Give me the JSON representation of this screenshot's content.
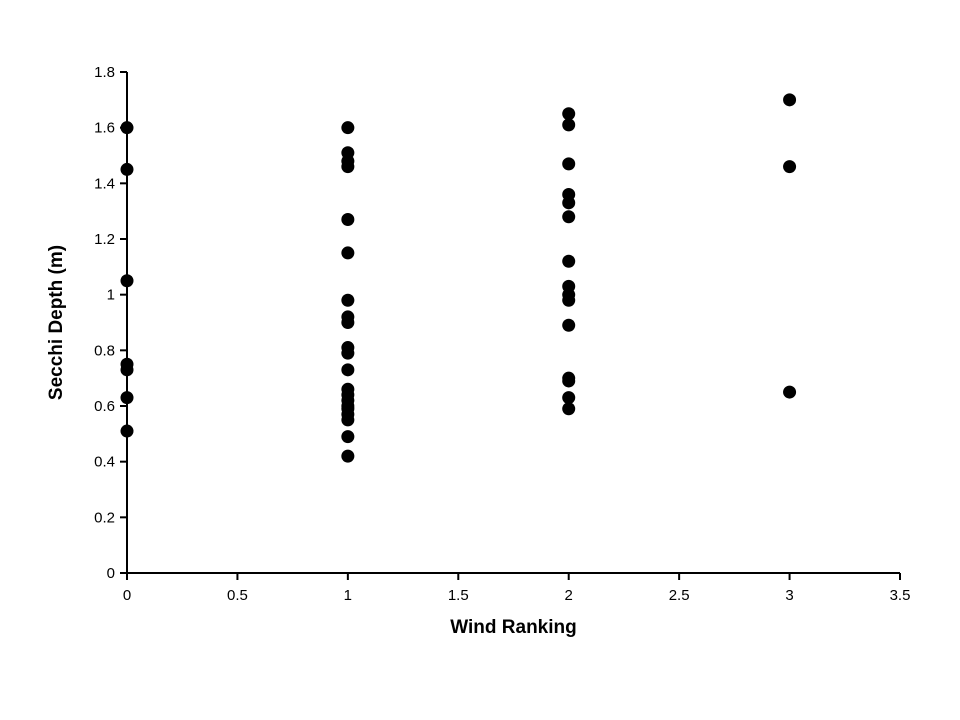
{
  "chart_data": {
    "type": "scatter",
    "title": "",
    "xlabel": "Wind Ranking",
    "ylabel": "Secchi Depth (m)",
    "xlim": [
      0,
      3.5
    ],
    "ylim": [
      0,
      1.8
    ],
    "grid": false,
    "legend": "none",
    "marker_color": "#000000",
    "x_tick_labels": [
      "0",
      "0.5",
      "1",
      "1.5",
      "2",
      "2.5",
      "3",
      "3.5"
    ],
    "x_tick_values": [
      0,
      0.5,
      1,
      1.5,
      2,
      2.5,
      3,
      3.5
    ],
    "y_tick_labels": [
      "0",
      "0.2",
      "0.4",
      "0.6",
      "0.8",
      "1",
      "1.2",
      "1.4",
      "1.6",
      "1.8"
    ],
    "y_tick_values": [
      0,
      0.2,
      0.4,
      0.6,
      0.8,
      1,
      1.2,
      1.4,
      1.6,
      1.8
    ],
    "points": [
      {
        "x": 0,
        "y": 1.6
      },
      {
        "x": 0,
        "y": 1.45
      },
      {
        "x": 0,
        "y": 1.05
      },
      {
        "x": 0,
        "y": 0.75
      },
      {
        "x": 0,
        "y": 0.73
      },
      {
        "x": 0,
        "y": 0.63
      },
      {
        "x": 0,
        "y": 0.51
      },
      {
        "x": 1,
        "y": 1.6
      },
      {
        "x": 1,
        "y": 1.51
      },
      {
        "x": 1,
        "y": 1.48
      },
      {
        "x": 1,
        "y": 1.46
      },
      {
        "x": 1,
        "y": 1.27
      },
      {
        "x": 1,
        "y": 1.15
      },
      {
        "x": 1,
        "y": 0.98
      },
      {
        "x": 1,
        "y": 0.92
      },
      {
        "x": 1,
        "y": 0.9
      },
      {
        "x": 1,
        "y": 0.81
      },
      {
        "x": 1,
        "y": 0.79
      },
      {
        "x": 1,
        "y": 0.73
      },
      {
        "x": 1,
        "y": 0.66
      },
      {
        "x": 1,
        "y": 0.64
      },
      {
        "x": 1,
        "y": 0.62
      },
      {
        "x": 1,
        "y": 0.6
      },
      {
        "x": 1,
        "y": 0.59
      },
      {
        "x": 1,
        "y": 0.57
      },
      {
        "x": 1,
        "y": 0.55
      },
      {
        "x": 1,
        "y": 0.49
      },
      {
        "x": 1,
        "y": 0.42
      },
      {
        "x": 2,
        "y": 1.65
      },
      {
        "x": 2,
        "y": 1.61
      },
      {
        "x": 2,
        "y": 1.47
      },
      {
        "x": 2,
        "y": 1.36
      },
      {
        "x": 2,
        "y": 1.33
      },
      {
        "x": 2,
        "y": 1.28
      },
      {
        "x": 2,
        "y": 1.12
      },
      {
        "x": 2,
        "y": 1.03
      },
      {
        "x": 2,
        "y": 1.0
      },
      {
        "x": 2,
        "y": 0.98
      },
      {
        "x": 2,
        "y": 0.89
      },
      {
        "x": 2,
        "y": 0.7
      },
      {
        "x": 2,
        "y": 0.69
      },
      {
        "x": 2,
        "y": 0.63
      },
      {
        "x": 2,
        "y": 0.59
      },
      {
        "x": 3,
        "y": 1.7
      },
      {
        "x": 3,
        "y": 1.46
      },
      {
        "x": 3,
        "y": 0.65
      }
    ]
  }
}
